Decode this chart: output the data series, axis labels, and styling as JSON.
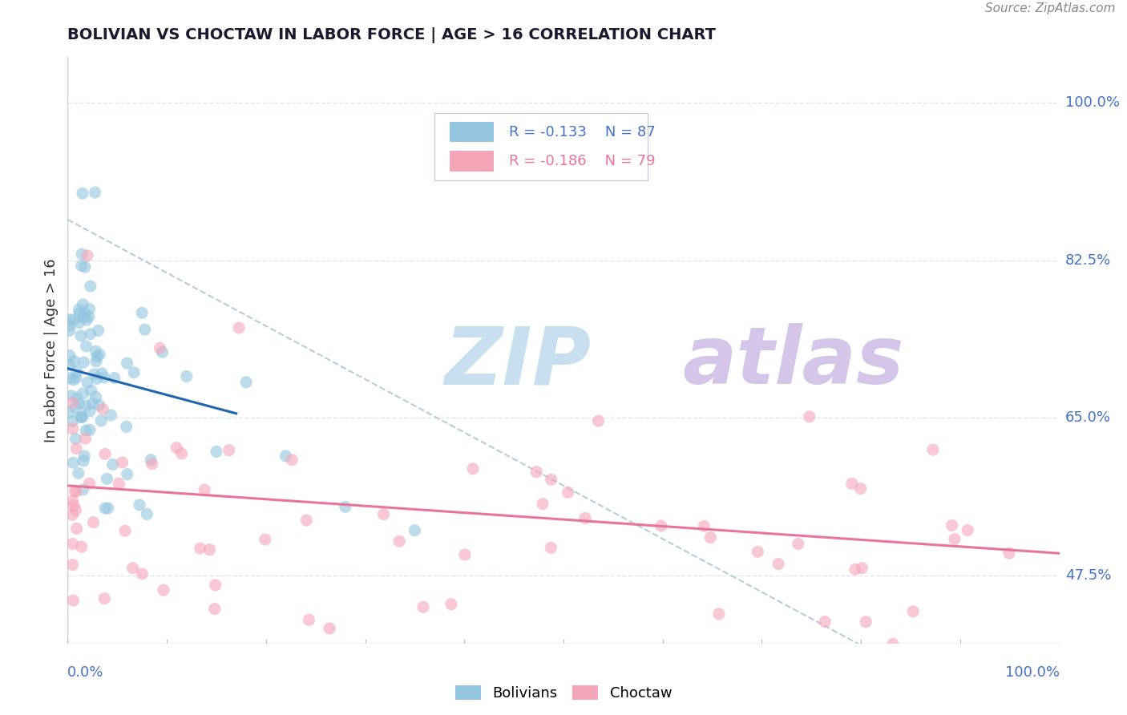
{
  "title": "BOLIVIAN VS CHOCTAW IN LABOR FORCE | AGE > 16 CORRELATION CHART",
  "source": "Source: ZipAtlas.com",
  "ylabel": "In Labor Force | Age > 16",
  "xlim": [
    0.0,
    100.0
  ],
  "ylim": [
    40.0,
    105.0
  ],
  "yticks": [
    47.5,
    65.0,
    82.5,
    100.0
  ],
  "ytick_labels": [
    "47.5%",
    "65.0%",
    "82.5%",
    "100.0%"
  ],
  "legend_r_bolivian": "R = -0.133",
  "legend_n_bolivian": "N = 87",
  "legend_r_choctaw": "R = -0.186",
  "legend_n_choctaw": "N = 79",
  "blue_color": "#92c5de",
  "pink_color": "#f4a5b8",
  "blue_line_color": "#2166ac",
  "pink_line_color": "#e8749a",
  "dashed_line_color": "#aec7d8",
  "watermark_zip_color": "#c8dff0",
  "watermark_atlas_color": "#d5c5e8",
  "background_color": "#ffffff",
  "grid_color": "#e0e8ef",
  "tick_color": "#4472c4",
  "title_color": "#1a1a2e",
  "source_color": "#888888",
  "ylabel_color": "#333333"
}
